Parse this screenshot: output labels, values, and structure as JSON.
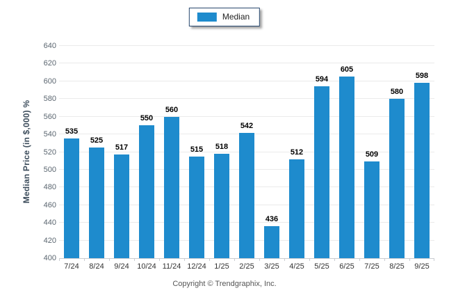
{
  "legend": {
    "label": "Median",
    "swatch_color": "#1e8bcd",
    "border_color": "#26466d"
  },
  "footer": {
    "copyright": "Copyright © Trendgraphix, Inc."
  },
  "colors": {
    "bar": "#1e8bcd",
    "grid": "#eaeaea",
    "axis": "#c9ccd1",
    "ytick_label": "#5b6670",
    "xtick_label": "#333333",
    "value_label": "#000000",
    "ylabel": "#3d4d5c",
    "footer": "#555555"
  },
  "chart_data": {
    "type": "bar",
    "title": "",
    "categories": [
      "7/24",
      "8/24",
      "9/24",
      "10/24",
      "11/24",
      "12/24",
      "1/25",
      "2/25",
      "3/25",
      "4/25",
      "5/25",
      "6/25",
      "7/25",
      "8/25",
      "9/25"
    ],
    "series": [
      {
        "name": "Median",
        "values": [
          535,
          525,
          517,
          550,
          560,
          515,
          518,
          542,
          436,
          512,
          594,
          605,
          509,
          580,
          598
        ]
      }
    ],
    "xlabel": "",
    "ylabel": "Median Price (in $,000) %",
    "ylim": [
      400,
      640
    ],
    "ytick_step": 20,
    "grid": true,
    "legend_position": "top-center",
    "show_value_labels": true
  }
}
